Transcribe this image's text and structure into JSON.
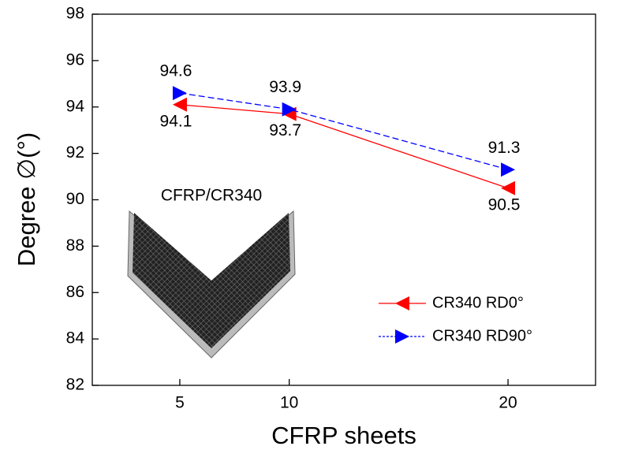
{
  "chart_data": {
    "type": "line",
    "x_label": "CFRP sheets",
    "y_label": "Degree ∅(°)",
    "annotation": "CFRP/CR340",
    "x": [
      5,
      10,
      20
    ],
    "series": [
      {
        "name": "CR340 RD0°",
        "color": "#ff0000",
        "marker": "triangle-left",
        "dash": "solid",
        "values": [
          94.1,
          93.7,
          90.5
        ]
      },
      {
        "name": "CR340 RD90°",
        "color": "#0000ff",
        "marker": "triangle-right",
        "dash": "dashed",
        "values": [
          94.6,
          93.9,
          91.3
        ]
      }
    ],
    "xlim": [
      1,
      24
    ],
    "xticks": [
      5,
      10,
      20
    ],
    "ylim": [
      82,
      98
    ],
    "yticks": [
      82,
      84,
      86,
      88,
      90,
      92,
      94,
      96,
      98
    ],
    "legend": "lower right",
    "data_labels": true
  }
}
